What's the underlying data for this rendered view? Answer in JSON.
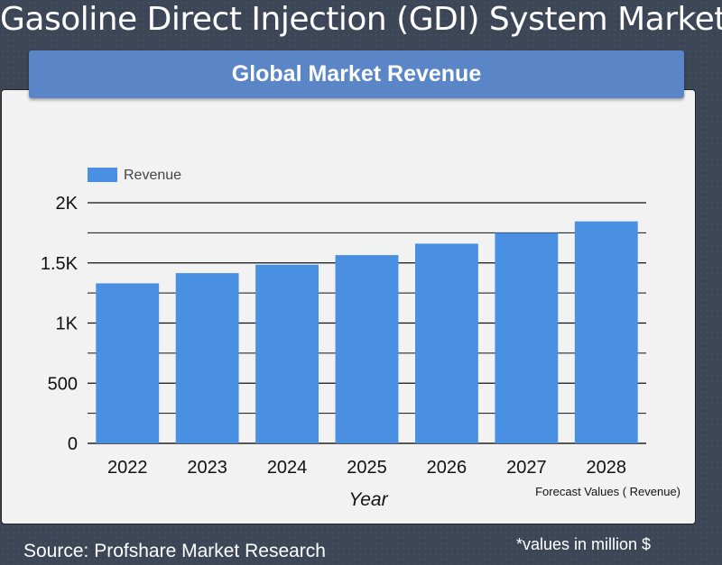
{
  "header": {
    "title": "Gasoline Direct Injection (GDI) System Market"
  },
  "banner": {
    "title": "Global Market Revenue"
  },
  "chart_data": {
    "type": "bar",
    "categories": [
      "2022",
      "2023",
      "2024",
      "2025",
      "2026",
      "2027",
      "2028"
    ],
    "series": [
      {
        "name": "Revenue",
        "values": [
          1330,
          1415,
          1485,
          1565,
          1660,
          1750,
          1845
        ],
        "color": "#4a90e2"
      }
    ],
    "xlabel": "Year",
    "ylabel": "",
    "ylim": [
      0,
      2000
    ],
    "yticks": [
      0,
      500,
      1000,
      1500,
      2000
    ],
    "ytick_labels": [
      "0",
      "500",
      "1K",
      "1.5K",
      "2K"
    ],
    "grid": true,
    "legend": "top-left",
    "annotation": "Forecast Values ( Revenue)"
  },
  "footer": {
    "source": "Source: Profshare Market Research",
    "note": "*values in million $"
  }
}
